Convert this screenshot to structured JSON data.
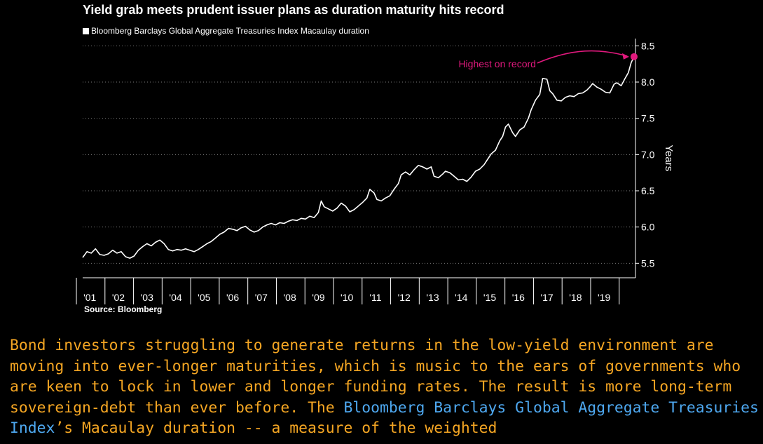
{
  "chart_data": {
    "type": "line",
    "title": "Yield grab meets prudent issuer plans as duration maturity hits record",
    "ylabel": "Years",
    "ylim": [
      5.3,
      8.6
    ],
    "xlim": [
      2000.25,
      2019.6
    ],
    "y_ticks": [
      "5.5",
      "6.0",
      "6.5",
      "7.0",
      "7.5",
      "8.0",
      "8.5"
    ],
    "x_ticks": [
      "'01",
      "'02",
      "'03",
      "'04",
      "'05",
      "'06",
      "'07",
      "'08",
      "'09",
      "'10",
      "'11",
      "'12",
      "'13",
      "'14",
      "'15",
      "'16",
      "'17",
      "'18",
      "'19"
    ],
    "grid": true,
    "series": [
      {
        "name": "Bloomberg Barclays Global Aggregate Treasuries Index Macaulay duration",
        "color": "#ffffff",
        "points": [
          [
            2000.25,
            5.58
          ],
          [
            2000.4,
            5.66
          ],
          [
            2000.55,
            5.64
          ],
          [
            2000.7,
            5.7
          ],
          [
            2000.85,
            5.62
          ],
          [
            2001.0,
            5.61
          ],
          [
            2001.15,
            5.63
          ],
          [
            2001.3,
            5.68
          ],
          [
            2001.45,
            5.64
          ],
          [
            2001.6,
            5.66
          ],
          [
            2001.75,
            5.59
          ],
          [
            2001.9,
            5.57
          ],
          [
            2002.05,
            5.6
          ],
          [
            2002.2,
            5.68
          ],
          [
            2002.35,
            5.73
          ],
          [
            2002.5,
            5.77
          ],
          [
            2002.65,
            5.74
          ],
          [
            2002.8,
            5.79
          ],
          [
            2002.95,
            5.82
          ],
          [
            2003.1,
            5.77
          ],
          [
            2003.25,
            5.69
          ],
          [
            2003.4,
            5.67
          ],
          [
            2003.55,
            5.69
          ],
          [
            2003.7,
            5.68
          ],
          [
            2003.85,
            5.7
          ],
          [
            2004.0,
            5.68
          ],
          [
            2004.15,
            5.66
          ],
          [
            2004.3,
            5.69
          ],
          [
            2004.45,
            5.73
          ],
          [
            2004.6,
            5.77
          ],
          [
            2004.75,
            5.8
          ],
          [
            2004.9,
            5.85
          ],
          [
            2005.05,
            5.9
          ],
          [
            2005.2,
            5.93
          ],
          [
            2005.35,
            5.98
          ],
          [
            2005.5,
            5.97
          ],
          [
            2005.65,
            5.95
          ],
          [
            2005.8,
            5.99
          ],
          [
            2005.95,
            6.01
          ],
          [
            2006.1,
            5.96
          ],
          [
            2006.25,
            5.93
          ],
          [
            2006.4,
            5.95
          ],
          [
            2006.55,
            6.0
          ],
          [
            2006.7,
            6.03
          ],
          [
            2006.85,
            6.05
          ],
          [
            2007.0,
            6.03
          ],
          [
            2007.15,
            6.06
          ],
          [
            2007.3,
            6.05
          ],
          [
            2007.45,
            6.08
          ],
          [
            2007.6,
            6.1
          ],
          [
            2007.75,
            6.09
          ],
          [
            2007.9,
            6.12
          ],
          [
            2008.05,
            6.11
          ],
          [
            2008.2,
            6.15
          ],
          [
            2008.35,
            6.13
          ],
          [
            2008.5,
            6.2
          ],
          [
            2008.6,
            6.36
          ],
          [
            2008.7,
            6.28
          ],
          [
            2008.85,
            6.25
          ],
          [
            2009.0,
            6.22
          ],
          [
            2009.15,
            6.26
          ],
          [
            2009.3,
            6.33
          ],
          [
            2009.45,
            6.29
          ],
          [
            2009.6,
            6.21
          ],
          [
            2009.75,
            6.24
          ],
          [
            2009.9,
            6.29
          ],
          [
            2010.05,
            6.34
          ],
          [
            2010.2,
            6.4
          ],
          [
            2010.3,
            6.52
          ],
          [
            2010.45,
            6.47
          ],
          [
            2010.55,
            6.38
          ],
          [
            2010.7,
            6.36
          ],
          [
            2010.85,
            6.4
          ],
          [
            2011.0,
            6.43
          ],
          [
            2011.15,
            6.52
          ],
          [
            2011.3,
            6.6
          ],
          [
            2011.4,
            6.72
          ],
          [
            2011.55,
            6.76
          ],
          [
            2011.7,
            6.72
          ],
          [
            2011.85,
            6.79
          ],
          [
            2012.0,
            6.85
          ],
          [
            2012.15,
            6.83
          ],
          [
            2012.3,
            6.8
          ],
          [
            2012.45,
            6.83
          ],
          [
            2012.55,
            6.7
          ],
          [
            2012.7,
            6.68
          ],
          [
            2012.85,
            6.73
          ],
          [
            2012.95,
            6.77
          ],
          [
            2013.1,
            6.75
          ],
          [
            2013.25,
            6.7
          ],
          [
            2013.4,
            6.65
          ],
          [
            2013.55,
            6.66
          ],
          [
            2013.7,
            6.63
          ],
          [
            2013.85,
            6.69
          ],
          [
            2014.0,
            6.77
          ],
          [
            2014.15,
            6.8
          ],
          [
            2014.3,
            6.86
          ],
          [
            2014.45,
            6.95
          ],
          [
            2014.55,
            7.01
          ],
          [
            2014.7,
            7.06
          ],
          [
            2014.85,
            7.19
          ],
          [
            2014.95,
            7.25
          ],
          [
            2015.05,
            7.38
          ],
          [
            2015.15,
            7.42
          ],
          [
            2015.3,
            7.3
          ],
          [
            2015.4,
            7.25
          ],
          [
            2015.55,
            7.34
          ],
          [
            2015.7,
            7.38
          ],
          [
            2015.85,
            7.5
          ],
          [
            2015.95,
            7.62
          ],
          [
            2016.1,
            7.75
          ],
          [
            2016.25,
            7.83
          ],
          [
            2016.35,
            8.05
          ],
          [
            2016.5,
            8.04
          ],
          [
            2016.6,
            7.88
          ],
          [
            2016.7,
            7.84
          ],
          [
            2016.85,
            7.75
          ],
          [
            2017.0,
            7.74
          ],
          [
            2017.15,
            7.79
          ],
          [
            2017.3,
            7.81
          ],
          [
            2017.45,
            7.8
          ],
          [
            2017.6,
            7.84
          ],
          [
            2017.75,
            7.85
          ],
          [
            2017.9,
            7.89
          ],
          [
            2018.0,
            7.93
          ],
          [
            2018.1,
            7.98
          ],
          [
            2018.25,
            7.93
          ],
          [
            2018.4,
            7.9
          ],
          [
            2018.55,
            7.86
          ],
          [
            2018.7,
            7.85
          ],
          [
            2018.85,
            7.97
          ],
          [
            2018.95,
            7.99
          ],
          [
            2019.1,
            7.95
          ],
          [
            2019.25,
            8.06
          ],
          [
            2019.35,
            8.13
          ],
          [
            2019.45,
            8.27
          ],
          [
            2019.55,
            8.35
          ]
        ]
      }
    ],
    "annotation": {
      "text": "Highest on record",
      "point": [
        2019.55,
        8.35
      ],
      "color": "#e0197d"
    },
    "legend_position": "top-left"
  },
  "source_label": "Source: Bloomberg",
  "article": {
    "text_before_link": "Bond investors struggling to generate returns in the low-yield environment are moving into ever-longer maturities, which is music to the ears of governments who are keen to lock in lower and longer funding rates. The result is more long-term sovereign-debt than ever before. The ",
    "link_text": "Bloomberg Barclays Global Aggregate Treasuries Index",
    "text_after_link": "’s Macaulay duration -- a measure of the weighted",
    "text_color": "#f5a623",
    "link_color": "#4ea8f0"
  }
}
